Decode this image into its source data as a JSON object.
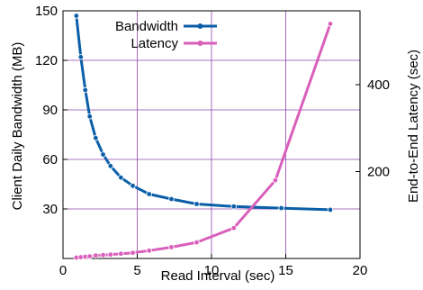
{
  "chart_data": {
    "type": "line",
    "xlabel": "Read Interval (sec)",
    "ylabel_left": "Client Daily Bandwidth (MB)",
    "ylabel_right": "End-to-End Latency (sec)",
    "xlim": [
      0,
      20
    ],
    "ylim_left": [
      0,
      150
    ],
    "ylim_right": [
      0,
      570
    ],
    "x_ticks": [
      0,
      5,
      10,
      15,
      20
    ],
    "y_ticks_left": [
      30,
      60,
      90,
      120,
      150
    ],
    "y_ticks_right": [
      200,
      400
    ],
    "grid": true,
    "legend_position": "top-left",
    "series": [
      {
        "name": "Bandwidth",
        "axis": "left",
        "color": "#0b5ea8",
        "x": [
          0.9,
          1.2,
          1.5,
          1.8,
          2.2,
          2.7,
          3.2,
          3.9,
          4.7,
          5.8,
          7.3,
          9.0,
          11.5,
          14.7,
          18.0
        ],
        "y": [
          147,
          122,
          102,
          86,
          73,
          63,
          56,
          49,
          44,
          39,
          36,
          33,
          31.5,
          30.5,
          29.5
        ]
      },
      {
        "name": "Latency",
        "axis": "right",
        "color": "#d95fbb",
        "x": [
          0.9,
          1.2,
          1.5,
          1.8,
          2.2,
          2.7,
          3.2,
          3.9,
          4.7,
          5.8,
          7.3,
          9.0,
          11.5,
          14.3,
          18.0
        ],
        "y": [
          2,
          3,
          4,
          5,
          7,
          8,
          9,
          11,
          13,
          18,
          26,
          37,
          70,
          180,
          540
        ]
      }
    ]
  }
}
